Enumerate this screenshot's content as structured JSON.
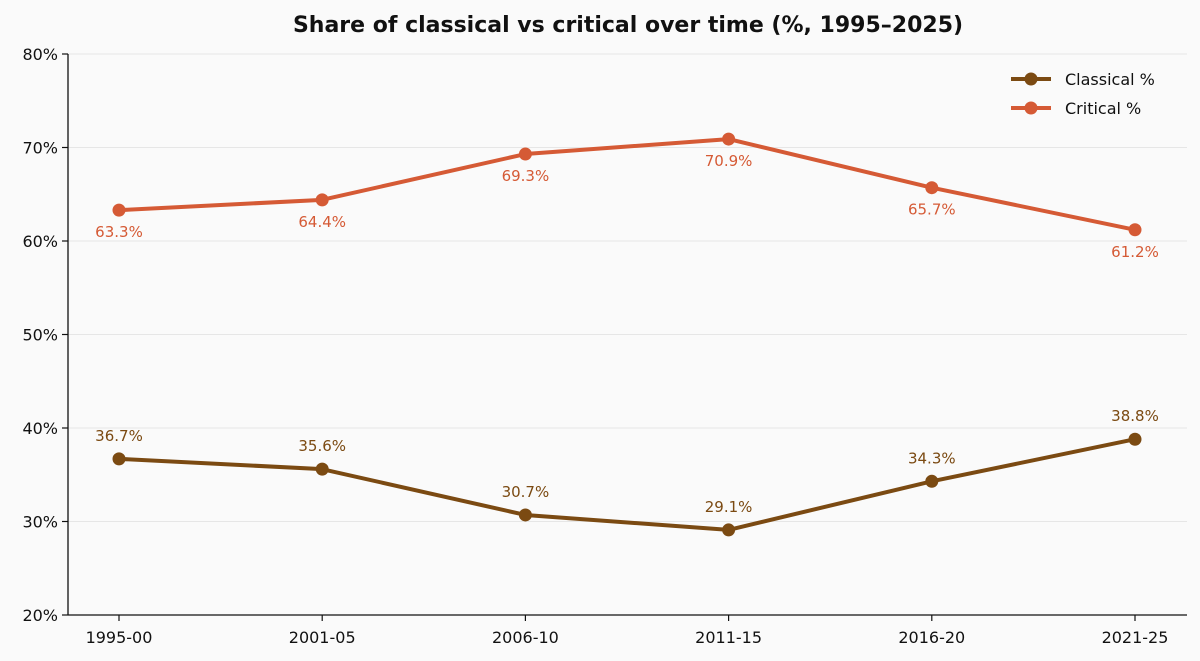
{
  "chart_data": {
    "type": "line",
    "title": "Share of classical vs critical over time (%, 1995–2025)",
    "xlabel": "",
    "ylabel": "",
    "categories": [
      "1995-00",
      "2001-05",
      "2006-10",
      "2011-15",
      "2016-20",
      "2021-25"
    ],
    "ylim": [
      20,
      80
    ],
    "yticks": [
      20,
      30,
      40,
      50,
      60,
      70,
      80
    ],
    "ytick_labels": [
      "20%",
      "30%",
      "40%",
      "50%",
      "60%",
      "70%",
      "80%"
    ],
    "grid": "horizontal",
    "legend_position": "top-right",
    "series": [
      {
        "name": "Classical %",
        "color": "#7b4a12",
        "values": [
          36.7,
          35.6,
          30.7,
          29.1,
          34.3,
          38.8
        ],
        "labels": [
          "36.7%",
          "35.6%",
          "30.7%",
          "29.1%",
          "34.3%",
          "38.8%"
        ],
        "label_position": "above"
      },
      {
        "name": "Critical %",
        "color": "#d55a35",
        "values": [
          63.3,
          64.4,
          69.3,
          70.9,
          65.7,
          61.2
        ],
        "labels": [
          "63.3%",
          "64.4%",
          "69.3%",
          "70.9%",
          "65.7%",
          "61.2%"
        ],
        "label_position": "below"
      }
    ]
  }
}
